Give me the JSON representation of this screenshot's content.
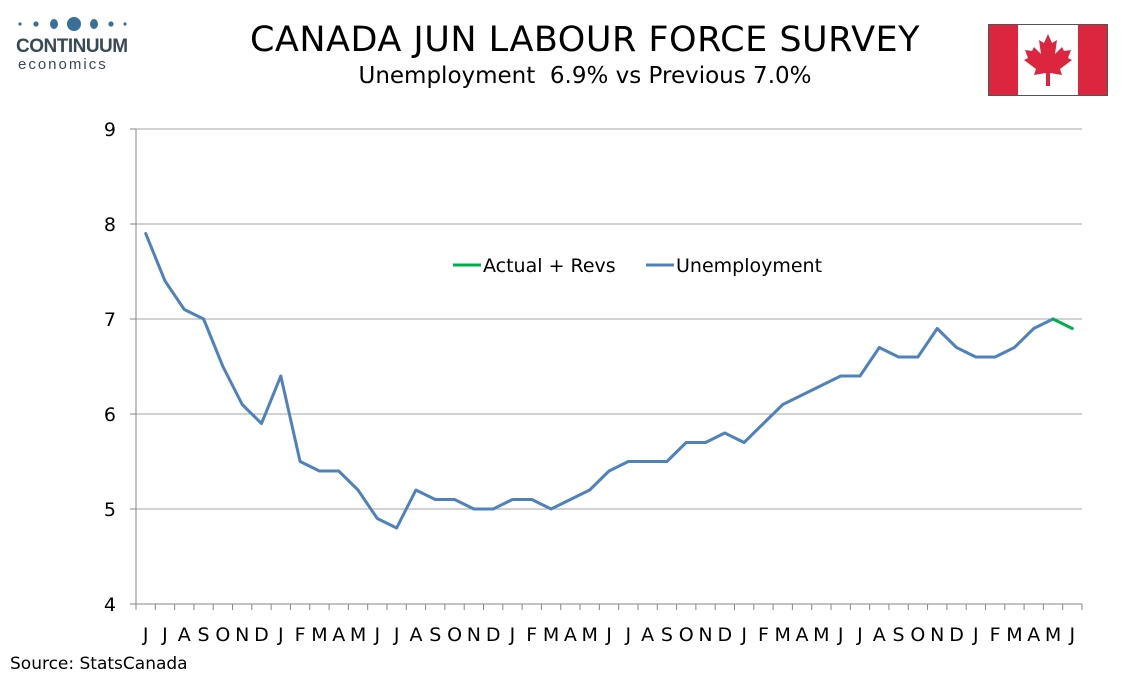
{
  "header": {
    "logo_top": "CONTINUUM",
    "logo_bottom": "economics",
    "title": "CANADA JUN LABOUR FORCE SURVEY",
    "subtitle": "Unemployment  6.9% vs Previous 7.0%"
  },
  "footer": {
    "source": "Source: StatsCanada"
  },
  "colors": {
    "unemployment": "#4f81bd",
    "actual_revs": "#00b050",
    "grid": "#a6a6a6",
    "flag_red": "#dc2640",
    "logo": "#3a4a55"
  },
  "chart_data": {
    "type": "line",
    "title": "CANADA JUN LABOUR FORCE SURVEY",
    "subtitle": "Unemployment  6.9% vs Previous 7.0%",
    "ylim": [
      4,
      9
    ],
    "yticks": [
      "4",
      "5",
      "6",
      "7",
      "8",
      "9"
    ],
    "grid": true,
    "legend_position": "upper-center",
    "categories": [
      "J",
      "J",
      "A",
      "S",
      "O",
      "N",
      "D",
      "J",
      "F",
      "M",
      "A",
      "M",
      "J",
      "J",
      "A",
      "S",
      "O",
      "N",
      "D",
      "J",
      "F",
      "M",
      "A",
      "M",
      "J",
      "J",
      "A",
      "S",
      "O",
      "N",
      "D",
      "J",
      "F",
      "M",
      "A",
      "M",
      "J",
      "J",
      "A",
      "S",
      "O",
      "N",
      "D",
      "J",
      "F",
      "M",
      "A",
      "M",
      "J"
    ],
    "series": [
      {
        "name": "Actual + Revs",
        "values": [
          null,
          null,
          null,
          null,
          null,
          null,
          null,
          null,
          null,
          null,
          null,
          null,
          null,
          null,
          null,
          null,
          null,
          null,
          null,
          null,
          null,
          null,
          null,
          null,
          null,
          null,
          null,
          null,
          null,
          null,
          null,
          null,
          null,
          null,
          null,
          null,
          null,
          null,
          null,
          null,
          null,
          null,
          null,
          null,
          null,
          null,
          null,
          7.0,
          6.9
        ]
      },
      {
        "name": "Unemployment",
        "values": [
          7.9,
          7.4,
          7.1,
          7.0,
          6.5,
          6.1,
          5.9,
          6.4,
          5.5,
          5.4,
          5.4,
          5.2,
          4.9,
          4.8,
          5.2,
          5.1,
          5.1,
          5.0,
          5.0,
          5.1,
          5.1,
          5.0,
          5.1,
          5.2,
          5.4,
          5.5,
          5.5,
          5.5,
          5.7,
          5.7,
          5.8,
          5.7,
          5.9,
          6.1,
          6.2,
          6.3,
          6.4,
          6.4,
          6.7,
          6.6,
          6.6,
          6.9,
          6.7,
          6.6,
          6.6,
          6.7,
          6.9,
          7.0,
          null
        ]
      }
    ]
  }
}
